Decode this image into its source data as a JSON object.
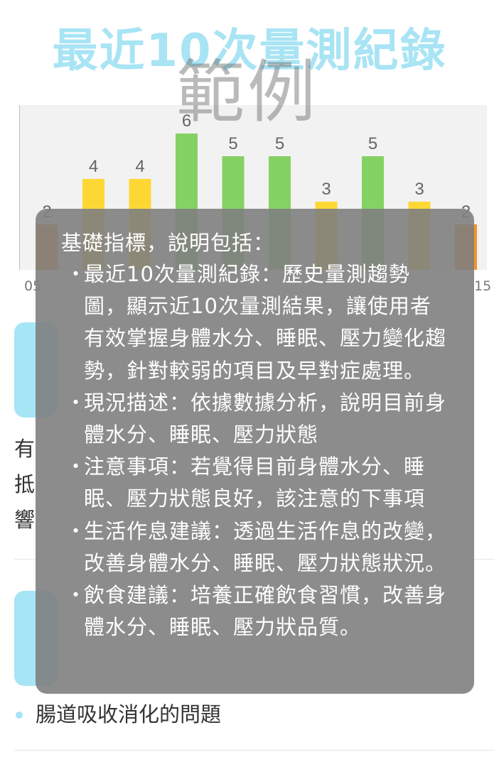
{
  "page": {
    "title": "最近10次量測紀錄",
    "watermark": "範例"
  },
  "chart_data": {
    "type": "bar",
    "values": [
      2,
      4,
      4,
      6,
      5,
      5,
      3,
      5,
      3,
      2
    ],
    "colors": [
      "#f6922c",
      "#fdd835",
      "#fdd835",
      "#85d264",
      "#85d264",
      "#85d264",
      "#fdd835",
      "#85d264",
      "#fdd835",
      "#f6922c"
    ],
    "x_tick_first": "05",
    "x_tick_last": "15",
    "ylim": [
      0,
      7
    ],
    "grid": true,
    "background": "#f2f2f2"
  },
  "background_text": {
    "line1_char": "有",
    "line2_char": "抵",
    "line3_char": "響",
    "bullet_item": "腸道吸收消化的問題"
  },
  "tooltip": {
    "intro": "基礎指標，說明包括：",
    "items": [
      {
        "label": "最近10次量測紀錄",
        "text": "：歷史量測趨勢圖，顯示近10次量測結果，讓使用者有效掌握身體水分、睡眠、壓力變化趨勢，針對較弱的項目及早對症處理。"
      },
      {
        "label": "現況描述",
        "text": "：依據數據分析，說明目前身體水分、睡眠、壓力狀態"
      },
      {
        "label": "注意事項",
        "text": "：若覺得目前身體水分、睡眠、壓力狀態良好，該注意的下事項"
      },
      {
        "label": "生活作息建議",
        "text": "：透過生活作息的改變，改善身體水分、睡眠、壓力狀態狀況。"
      },
      {
        "label": "飲食建議",
        "text": "：培養正確飲食習慣，改善身體水分、睡眠、壓力狀品質。"
      }
    ],
    "bullet": "・"
  },
  "colors": {
    "accent": "#a6e5f5",
    "title": "#a8e4f4",
    "tooltip_bg": "#808080"
  }
}
